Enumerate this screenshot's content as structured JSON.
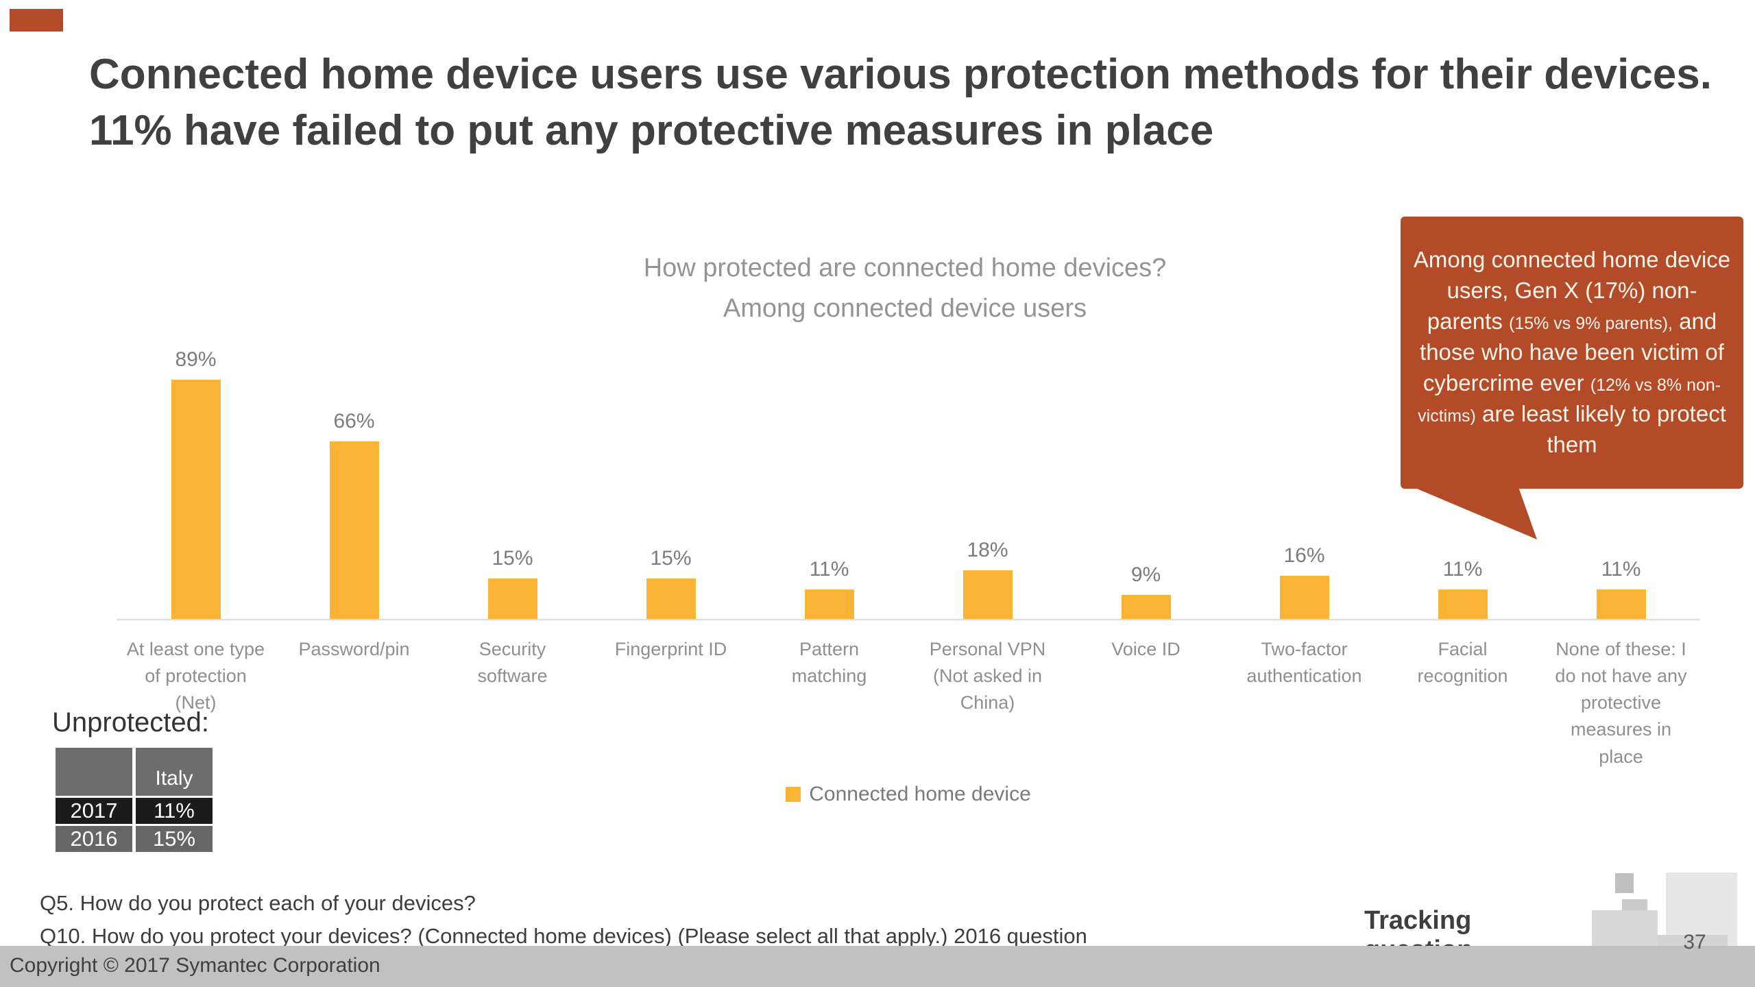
{
  "slide": {
    "title": "Connected home device users use various protection methods for their devices. 11% have failed to put any protective measures in place",
    "footnote_1": "Q5. How do you protect each of your devices?",
    "footnote_2": "Q10. How do you protect your devices? (Connected home devices) (Please select all that apply.) 2016 question",
    "tracking_label": "Tracking question",
    "page_number": "37",
    "copyright": "Copyright © 2017 Symantec Corporation",
    "accent_color": "#b34a28"
  },
  "chart_data": {
    "type": "bar",
    "title_line1": "How protected are connected home devices?",
    "title_line2": "Among connected device users",
    "categories": [
      "At least one type of protection (Net)",
      "Password/pin",
      "Security software",
      "Fingerprint ID",
      "Pattern matching",
      "Personal VPN (Not asked in China)",
      "Voice ID",
      "Two-factor authentication",
      "Facial recognition",
      "None of these: I do not have any protective measures in place"
    ],
    "values": [
      89,
      66,
      15,
      15,
      11,
      18,
      9,
      16,
      11,
      11
    ],
    "value_labels": [
      "89%",
      "66%",
      "15%",
      "15%",
      "11%",
      "18%",
      "9%",
      "16%",
      "11%",
      "11%"
    ],
    "bar_color": "#f9b335",
    "ylim": [
      0,
      100
    ],
    "grid": false,
    "legend_position": "bottom-center",
    "legend": [
      {
        "label": "Connected home device",
        "color": "#f9b335"
      }
    ]
  },
  "callout": {
    "bg_color": "#b34a28",
    "segments": [
      {
        "size": "big",
        "text": "Among connected home device users, Gen X (17%) non-parents "
      },
      {
        "size": "small",
        "text": "(15% vs 9% parents),"
      },
      {
        "size": "big",
        "text": " and those who have been victim of cybercrime ever "
      },
      {
        "size": "small",
        "text": "(12% vs 8% non-victims)"
      },
      {
        "size": "big",
        "text": " are least likely to protect them"
      }
    ]
  },
  "unprotected_table": {
    "heading": "Unprotected:",
    "column_header": "Italy",
    "rows": [
      {
        "year": "2017",
        "value": "11%"
      },
      {
        "year": "2016",
        "value": "15%"
      }
    ]
  }
}
